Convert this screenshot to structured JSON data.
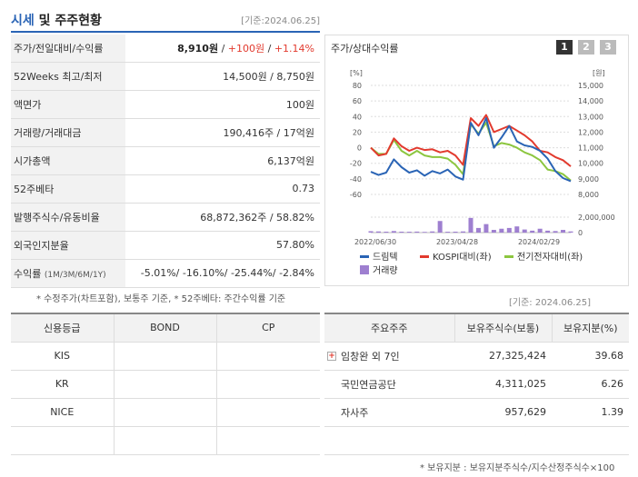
{
  "header": {
    "title_part1": "시세",
    "title_part2": " 및 주주현황",
    "date": "[기준:2024.06.25]"
  },
  "quote_rows": {
    "price_label": "주가/전일대비/수익률",
    "price": "8,910원",
    "change": "+100원",
    "change_rate": "+1.14%",
    "week52_label": "52Weeks 최고/최저",
    "week52_value": "14,500원 / 8,750원",
    "par_label": "액면가",
    "par_value": "100원",
    "volume_label": "거래량/거래대금",
    "volume_value": "190,416주 / 17억원",
    "mcap_label": "시가총액",
    "mcap_value": "6,137억원",
    "beta_label": "52주베타",
    "beta_value": "0.73",
    "shares_label": "발행주식수/유동비율",
    "shares_value": "68,872,362주 / 58.82%",
    "foreign_label": "외국인지분율",
    "foreign_value": "57.80%",
    "return_label": "수익률",
    "return_periods": "(1M/3M/6M/1Y)",
    "return_value": "-5.01%/ -16.10%/ -25.44%/ -2.84%"
  },
  "note1": "* 수정주가(차트포함), 보통주 기준, * 52주베타: 주간수익률 기준",
  "chart_panel": {
    "title": "주가/상대수익률",
    "pages": [
      "1",
      "2",
      "3"
    ],
    "accent": "#2a64b5"
  },
  "chart_data": {
    "type": "line",
    "x_tick_labels": [
      "2022/06/30",
      "2023/04/28",
      "2024/02/29"
    ],
    "left_axis": {
      "unit": "[%]",
      "ticks": [
        "80",
        "60",
        "40",
        "20",
        "0",
        "-20",
        "-40",
        "-60"
      ],
      "ylim": [
        -60,
        80
      ]
    },
    "right_axis": {
      "unit": "[원]",
      "ticks": [
        "15,000",
        "14,000",
        "13,000",
        "12,000",
        "11,000",
        "10,000",
        "9,000",
        "8,000"
      ],
      "ylim": [
        8000,
        15000
      ]
    },
    "volume_axis": {
      "ticks": [
        "2,000,000",
        "0"
      ],
      "ylim": [
        0,
        2000000
      ]
    },
    "series": [
      {
        "name": "드림텍",
        "color": "#2a64b5",
        "axis": "right",
        "values": [
          9450,
          9250,
          9400,
          10250,
          9750,
          9400,
          9550,
          9200,
          9500,
          9350,
          9600,
          9150,
          8950,
          12600,
          11800,
          12900,
          11000,
          11650,
          12400,
          11400,
          11150,
          11050,
          10800,
          10300,
          9500,
          9050,
          8850
        ]
      },
      {
        "name": "KOSPI대비(좌)",
        "color": "#e23a2e",
        "axis": "left",
        "values": [
          0,
          -10,
          -8,
          12,
          2,
          -4,
          0,
          -3,
          -2,
          -6,
          -4,
          -10,
          -22,
          38,
          28,
          42,
          20,
          24,
          28,
          22,
          16,
          8,
          -4,
          -6,
          -12,
          -16,
          -24
        ]
      },
      {
        "name": "전기전자대비(좌)",
        "color": "#8cc63f",
        "axis": "left",
        "values": [
          0,
          -8,
          -8,
          10,
          -4,
          -10,
          -4,
          -10,
          -12,
          -12,
          -14,
          -22,
          -34,
          30,
          18,
          32,
          2,
          6,
          4,
          0,
          -6,
          -10,
          -16,
          -28,
          -30,
          -34,
          -42
        ]
      },
      {
        "name": "거래량",
        "color": "#9e7fd0",
        "axis": "volume",
        "values": [
          180000,
          150000,
          120000,
          200000,
          120000,
          110000,
          130000,
          90000,
          150000,
          1500000,
          110000,
          120000,
          150000,
          1900000,
          600000,
          1100000,
          350000,
          500000,
          600000,
          800000,
          400000,
          250000,
          500000,
          250000,
          200000,
          350000,
          150000
        ]
      }
    ]
  },
  "date2": "[기준: 2024.06.25]",
  "credit": {
    "headers": [
      "신용등급",
      "BOND",
      "CP"
    ],
    "rows": [
      [
        "KIS",
        "",
        ""
      ],
      [
        "KR",
        "",
        ""
      ],
      [
        "NICE",
        "",
        ""
      ],
      [
        "",
        "",
        ""
      ]
    ]
  },
  "holders": {
    "headers": [
      "주요주주",
      "보유주식수(보통)",
      "보유지분(%)"
    ],
    "rows": [
      {
        "name": "임창완 외 7인",
        "shares": "27,325,424",
        "pct": "39.68"
      },
      {
        "name": "국민연금공단",
        "shares": "4,311,025",
        "pct": "6.26"
      },
      {
        "name": "자사주",
        "shares": "957,629",
        "pct": "1.39"
      },
      {
        "name": "",
        "shares": "",
        "pct": ""
      }
    ]
  },
  "note2": "* 보유지분 : 보유지분주식수/지수산정주식수×100"
}
